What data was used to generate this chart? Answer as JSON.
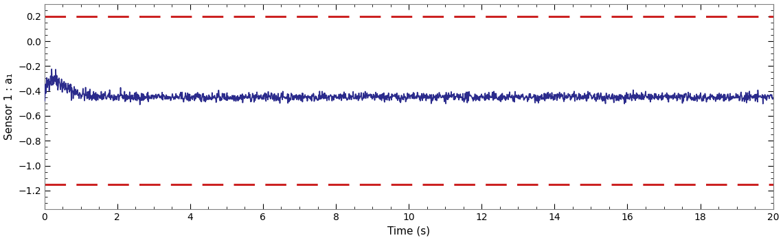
{
  "upper_bound": 0.2,
  "lower_bound": -1.15,
  "true_value_steady": -0.45,
  "t_start": 0,
  "t_end": 20,
  "n_points": 2000,
  "xlabel": "Time (s)",
  "ylabel": "Sensor 1 : a₁",
  "xlim": [
    0,
    20
  ],
  "ylim": [
    -1.35,
    0.3
  ],
  "yticks": [
    -1.2,
    -1.0,
    -0.8,
    -0.6,
    -0.4,
    -0.2,
    0.0,
    0.2
  ],
  "xticks": [
    0,
    2,
    4,
    6,
    8,
    10,
    12,
    14,
    16,
    18,
    20
  ],
  "blue_color": "#2b2b8c",
  "red_color": "#cc2222",
  "background_color": "#ffffff",
  "seed": 42,
  "dip_depth": -0.5,
  "dip_tau": 0.12,
  "conv_tau": 0.35,
  "noise_base": 0.018,
  "noise_early_scale": 2.0,
  "noise_decay": 1.5
}
